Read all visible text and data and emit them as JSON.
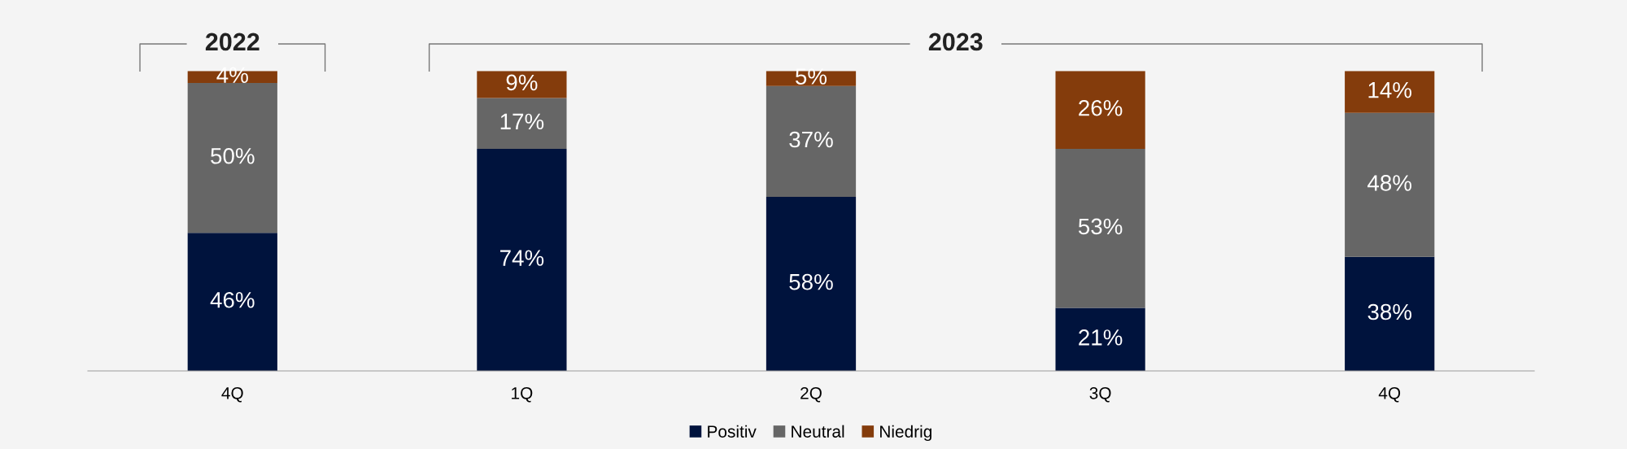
{
  "chart_data": {
    "type": "bar",
    "stacked": true,
    "categories": [
      "4Q",
      "1Q",
      "2Q",
      "3Q",
      "4Q"
    ],
    "series": [
      {
        "name": "Positiv",
        "color": "#00133d",
        "values": [
          46,
          74,
          58,
          21,
          38
        ],
        "value_labels": [
          "46%",
          "74%",
          "58%",
          "21%",
          "38%"
        ]
      },
      {
        "name": "Neutral",
        "color": "#666666",
        "values": [
          50,
          17,
          37,
          53,
          48
        ],
        "value_labels": [
          "50%",
          "17%",
          "37%",
          "53%",
          "48%"
        ]
      },
      {
        "name": "Niedrig",
        "color": "#843c0c",
        "values": [
          4,
          9,
          5,
          26,
          14
        ],
        "value_labels": [
          "4%",
          "9%",
          "5%",
          "26%",
          "14%"
        ]
      }
    ],
    "tick_labels": "x",
    "grid": false,
    "legend": "bottom",
    "annotations": [
      "2022",
      "2023"
    ]
  }
}
